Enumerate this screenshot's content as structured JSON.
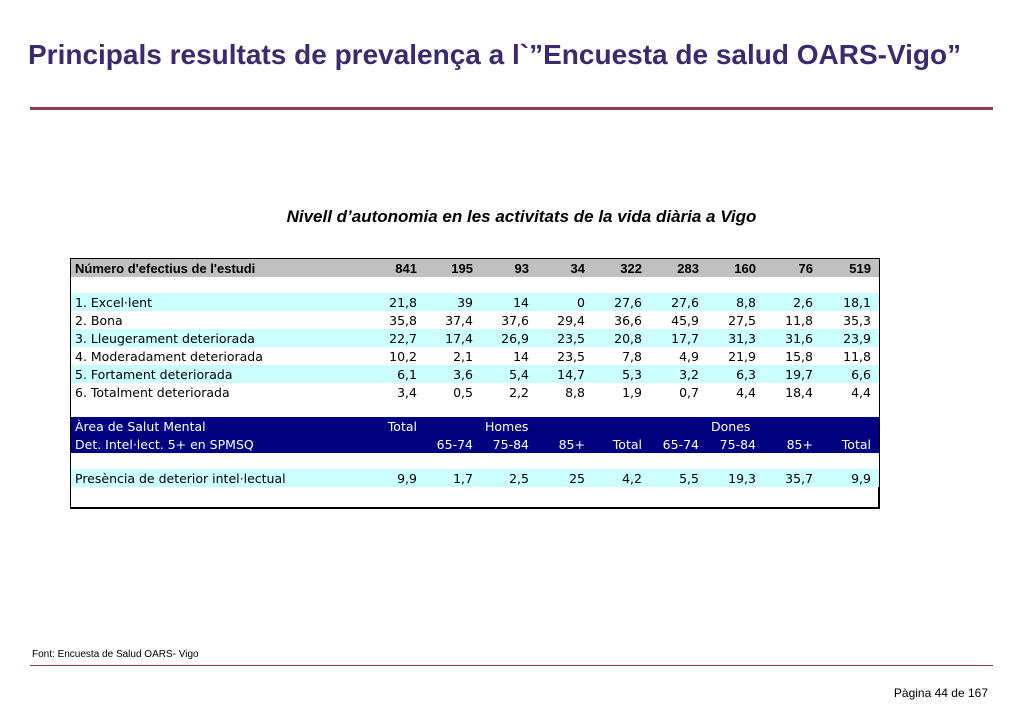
{
  "title": "Principals resultats de prevalença a  l`”Encuesta de salud OARS-Vigo”",
  "subtitle": "Nivell d’autonomia en les activitats de la vida diària a Vigo",
  "table": {
    "header": {
      "label": "Número d'efectius de l'estudi",
      "values": [
        "841",
        "195",
        "93",
        "34",
        "322",
        "283",
        "160",
        "76",
        "519"
      ]
    },
    "autonomy_rows": [
      {
        "label": "1. Excel·lent",
        "values": [
          "21,8",
          "39",
          "14",
          "0",
          "27,6",
          "27,6",
          "8,8",
          "2,6",
          "18,1"
        ]
      },
      {
        "label": "2. Bona",
        "values": [
          "35,8",
          "37,4",
          "37,6",
          "29,4",
          "36,6",
          "45,9",
          "27,5",
          "11,8",
          "35,3"
        ]
      },
      {
        "label": "3. Lleugerament deteriorada",
        "values": [
          "22,7",
          "17,4",
          "26,9",
          "23,5",
          "20,8",
          "17,7",
          "31,3",
          "31,6",
          "23,9"
        ]
      },
      {
        "label": "4. Moderadament deteriorada",
        "values": [
          "10,2",
          "2,1",
          "14",
          "23,5",
          "7,8",
          "4,9",
          "21,9",
          "15,8",
          "11,8"
        ]
      },
      {
        "label": "5. Fortament deteriorada",
        "values": [
          "6,1",
          "3,6",
          "5,4",
          "14,7",
          "5,3",
          "3,2",
          "6,3",
          "19,7",
          "6,6"
        ]
      },
      {
        "label": "6. Totalment deteriorada",
        "values": [
          "3,4",
          "0,5",
          "2,2",
          "8,8",
          "1,9",
          "0,7",
          "4,4",
          "18,4",
          "4,4"
        ]
      }
    ],
    "section_header": {
      "area_label": "Àrea de Salut Mental",
      "total_label": "Total",
      "homes_label": "Homes",
      "dones_label": "Dones",
      "det_label": "Det. Intel·lect. 5+ en SPMSQ",
      "subheaders": [
        "65-74",
        "75-84",
        "85+",
        "Total",
        "65-74",
        "75-84",
        "85+",
        "Total"
      ]
    },
    "presence_row": {
      "label": "Presència de deterior intel·lectual",
      "values": [
        "9,9",
        "1,7",
        "2,5",
        "25",
        "4,2",
        "5,5",
        "19,3",
        "35,7",
        "9,9"
      ]
    }
  },
  "source": "Font: Encuesta de Salud OARS- Vigo",
  "page_number": "Pàgina 44 de 167",
  "colors": {
    "title": "#3a2a6e",
    "rule": "#8b3a56",
    "header_gray": "#c0c0c0",
    "cyan_row": "#ccffff",
    "navy": "#000080"
  }
}
